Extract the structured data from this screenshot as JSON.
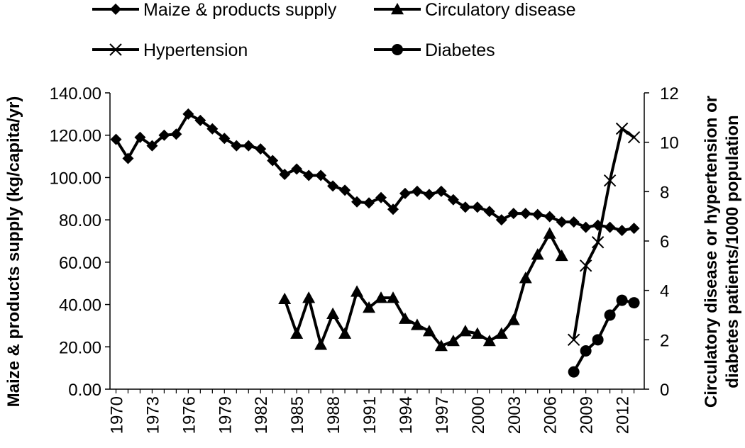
{
  "chart_data": {
    "type": "line",
    "x": [
      1970,
      1971,
      1972,
      1973,
      1974,
      1975,
      1976,
      1977,
      1978,
      1979,
      1980,
      1981,
      1982,
      1983,
      1984,
      1985,
      1986,
      1987,
      1988,
      1989,
      1990,
      1991,
      1992,
      1993,
      1994,
      1995,
      1996,
      1997,
      1998,
      1999,
      2000,
      2001,
      2002,
      2003,
      2004,
      2005,
      2006,
      2007,
      2008,
      2009,
      2010,
      2011,
      2012,
      2013
    ],
    "x_tick_labels": [
      "1970",
      "1973",
      "1976",
      "1979",
      "1982",
      "1985",
      "1988",
      "1991",
      "1994",
      "1997",
      "2000",
      "2003",
      "2006",
      "2009",
      "2012"
    ],
    "x_tick_values": [
      1970,
      1973,
      1976,
      1979,
      1982,
      1985,
      1988,
      1991,
      1994,
      1997,
      2000,
      2003,
      2006,
      2009,
      2012
    ],
    "y_left": {
      "label": "Maize & products supply (kg/capita/yr)",
      "lim": [
        0,
        140
      ],
      "ticks": [
        0,
        20,
        40,
        60,
        80,
        100,
        120,
        140
      ],
      "tick_labels": [
        "0.00",
        "20.00",
        "40.00",
        "60.00",
        "80.00",
        "100.00",
        "120.00",
        "140.00"
      ]
    },
    "y_right": {
      "label_lines": [
        "Circulatory disease or hypertension or",
        "diabetes patients/1000 population"
      ],
      "lim": [
        0,
        12
      ],
      "ticks": [
        0,
        2,
        4,
        6,
        8,
        10,
        12
      ],
      "tick_labels": [
        "0",
        "2",
        "4",
        "6",
        "8",
        "10",
        "12"
      ]
    },
    "legend_position": "top",
    "series": [
      {
        "name": "Maize & products supply",
        "marker": "diamond",
        "axis": "left",
        "x": [
          1970,
          1971,
          1972,
          1973,
          1974,
          1975,
          1976,
          1977,
          1978,
          1979,
          1980,
          1981,
          1982,
          1983,
          1984,
          1985,
          1986,
          1987,
          1988,
          1989,
          1990,
          1991,
          1992,
          1993,
          1994,
          1995,
          1996,
          1997,
          1998,
          1999,
          2000,
          2001,
          2002,
          2003,
          2004,
          2005,
          2006,
          2007,
          2008,
          2009,
          2010,
          2011,
          2012,
          2013
        ],
        "values": [
          118,
          109,
          119,
          115,
          120,
          120.5,
          130,
          127,
          123,
          118.5,
          115,
          115,
          113.5,
          108,
          101.5,
          104,
          101,
          101,
          96,
          94,
          88.5,
          88,
          90.5,
          85,
          92.5,
          93.5,
          92,
          93.5,
          89.5,
          86,
          86,
          84,
          80,
          83,
          83,
          82.5,
          81.5,
          79,
          79,
          76.5,
          77.5,
          76.5,
          75,
          76
        ]
      },
      {
        "name": "Circulatory disease",
        "marker": "triangle",
        "axis": "right",
        "x": [
          1984,
          1985,
          1986,
          1987,
          1988,
          1989,
          1990,
          1991,
          1992,
          1993,
          1994,
          1995,
          1996,
          1997,
          1998,
          1999,
          2000,
          2001,
          2002,
          2003,
          2004,
          2005,
          2006,
          2007
        ],
        "values": [
          3.65,
          2.25,
          3.7,
          1.8,
          3.05,
          2.25,
          3.95,
          3.3,
          3.7,
          3.7,
          2.85,
          2.6,
          2.35,
          1.75,
          1.95,
          2.35,
          2.25,
          1.95,
          2.25,
          2.8,
          4.5,
          5.45,
          6.3,
          5.4
        ]
      },
      {
        "name": "Hypertension",
        "marker": "x",
        "axis": "right",
        "x": [
          2008,
          2009,
          2010,
          2011,
          2012,
          2013
        ],
        "values": [
          2.0,
          5.0,
          5.95,
          8.45,
          10.55,
          10.2
        ]
      },
      {
        "name": "Diabetes",
        "marker": "circle",
        "axis": "right",
        "x": [
          2008,
          2009,
          2010,
          2011,
          2012,
          2013
        ],
        "values": [
          0.7,
          1.55,
          2.0,
          3.0,
          3.6,
          3.5
        ]
      }
    ]
  }
}
